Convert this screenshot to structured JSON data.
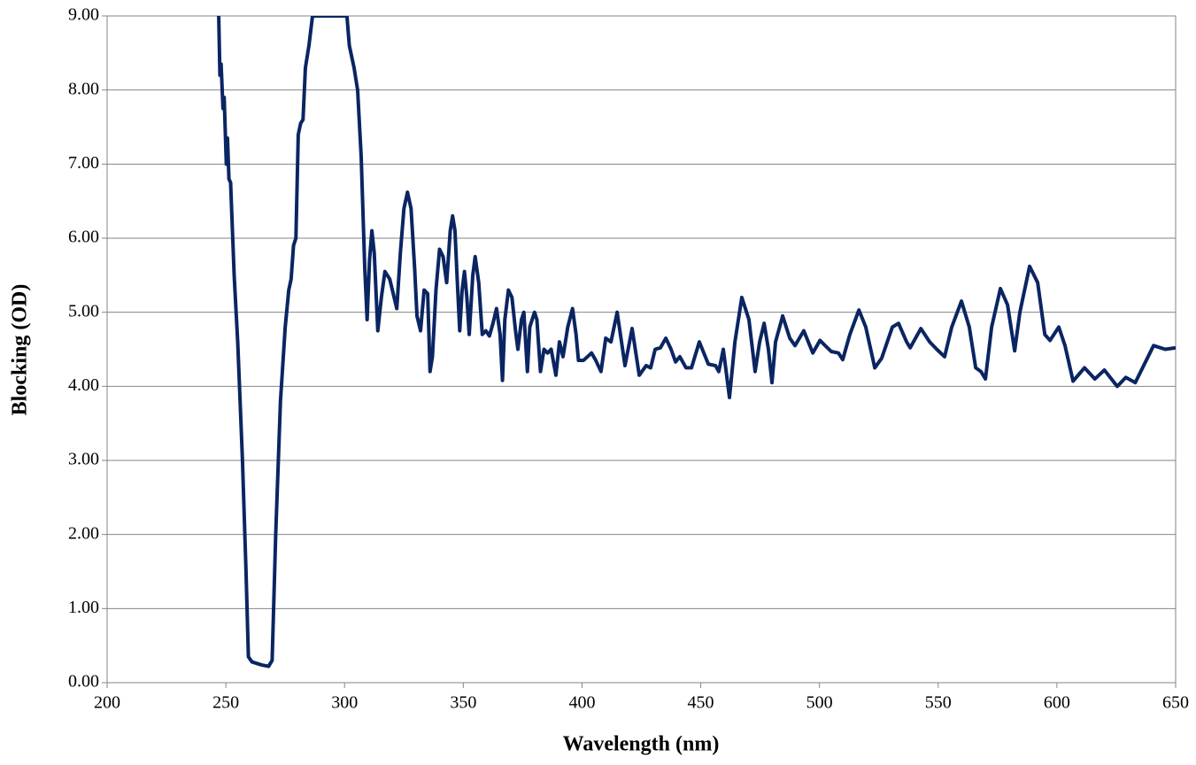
{
  "chart_data": {
    "type": "line",
    "x_label": "Wavelength (nm)",
    "y_label": "Blocking (OD)",
    "color": "#0a2562",
    "grid": true,
    "xlim": [
      200,
      650
    ],
    "xticks": [
      200,
      250,
      300,
      350,
      400,
      450,
      500,
      550,
      600,
      650
    ],
    "ylim": [
      0,
      9
    ],
    "yticks": [
      {
        "value": 0,
        "label": "0.00"
      },
      {
        "value": 1,
        "label": "1.00"
      },
      {
        "value": 2,
        "label": "2.00"
      },
      {
        "value": 3,
        "label": "3.00"
      },
      {
        "value": 4,
        "label": "4.00"
      },
      {
        "value": 5,
        "label": "5.00"
      },
      {
        "value": 6,
        "label": "6.00"
      },
      {
        "value": 7,
        "label": "7.00"
      },
      {
        "value": 8,
        "label": "8.00"
      },
      {
        "value": 9,
        "label": "9.00"
      }
    ],
    "x": [
      247,
      247.5,
      248,
      248.8,
      249.3,
      250.2,
      250.7,
      251.3,
      252,
      253.5,
      255,
      257,
      258.5,
      259.5,
      261,
      265,
      268,
      269.5,
      271,
      273,
      275,
      276.5,
      277.5,
      278.5,
      279.5,
      280.5,
      281.5,
      282.5,
      283.5,
      285,
      286.5,
      288,
      289,
      301,
      302,
      304,
      305.5,
      307,
      308.5,
      309.5,
      310.5,
      311.5,
      312.5,
      314,
      315.5,
      317,
      319,
      320.5,
      322,
      323.5,
      325,
      326.5,
      328,
      329.5,
      330.5,
      332,
      333.5,
      335,
      336,
      337,
      338.5,
      340,
      341.5,
      343,
      344.5,
      345.5,
      346.5,
      347.5,
      348.5,
      349.5,
      350.5,
      351.5,
      352.5,
      354,
      355,
      356.5,
      358,
      359.5,
      361,
      362.5,
      364,
      365.5,
      366.5,
      367.5,
      369,
      370.5,
      372,
      373,
      374.5,
      375.5,
      377,
      378,
      380,
      381,
      382.5,
      384,
      385.5,
      387,
      389,
      390.5,
      392,
      394,
      396,
      397.5,
      398.5,
      400.6,
      404,
      405.8,
      408,
      410,
      412.2,
      414.8,
      418.1,
      421.1,
      424.1,
      427,
      428.9,
      430.8,
      433,
      435.3,
      437.5,
      439.4,
      441.2,
      443.8,
      446.1,
      449.4,
      453.2,
      456.2,
      457.6,
      459.5,
      462.1,
      464.4,
      467.3,
      470.3,
      472.9,
      474.8,
      476.7,
      478.5,
      480,
      481.5,
      484.5,
      487.5,
      489.7,
      493.4,
      497.2,
      500.2,
      502.4,
      505,
      508,
      509.8,
      512.8,
      516.6,
      519.5,
      523.3,
      526.2,
      530.7,
      533.3,
      536.7,
      538.2,
      542.7,
      546.4,
      549.4,
      552.7,
      555.7,
      559.8,
      563.1,
      565.8,
      568,
      569.9,
      572.5,
      576.2,
      579.2,
      582.2,
      584.4,
      588.5,
      591.9,
      594.9,
      597.1,
      600.8,
      603.4,
      606.8,
      611.6,
      616,
      620,
      625.4,
      629,
      633,
      640.7,
      645.6,
      650
    ],
    "values": [
      9.0,
      8.2,
      8.35,
      7.75,
      7.9,
      7.0,
      7.35,
      6.8,
      6.75,
      5.5,
      4.6,
      3.0,
      1.5,
      0.35,
      0.28,
      0.24,
      0.22,
      0.3,
      2.0,
      3.8,
      4.8,
      5.3,
      5.45,
      5.9,
      6.0,
      7.4,
      7.55,
      7.6,
      8.3,
      8.6,
      9.0,
      9.0,
      9.0,
      9.0,
      8.6,
      8.3,
      8.0,
      7.1,
      5.6,
      4.9,
      5.7,
      6.1,
      5.8,
      4.75,
      5.2,
      5.55,
      5.45,
      5.25,
      5.05,
      5.8,
      6.4,
      6.62,
      6.4,
      5.6,
      4.95,
      4.75,
      5.3,
      5.25,
      4.2,
      4.4,
      5.3,
      5.85,
      5.75,
      5.4,
      6.1,
      6.3,
      6.1,
      5.4,
      4.75,
      5.3,
      5.55,
      5.2,
      4.7,
      5.5,
      5.75,
      5.4,
      4.7,
      4.75,
      4.68,
      4.85,
      5.05,
      4.7,
      4.08,
      4.9,
      5.3,
      5.2,
      4.75,
      4.5,
      4.9,
      5.0,
      4.2,
      4.8,
      5.0,
      4.9,
      4.2,
      4.5,
      4.45,
      4.5,
      4.15,
      4.6,
      4.4,
      4.8,
      5.05,
      4.7,
      4.35,
      4.35,
      4.45,
      4.35,
      4.2,
      4.65,
      4.6,
      5.0,
      4.28,
      4.78,
      4.15,
      4.28,
      4.25,
      4.5,
      4.52,
      4.65,
      4.5,
      4.33,
      4.4,
      4.25,
      4.25,
      4.6,
      4.3,
      4.28,
      4.2,
      4.5,
      3.85,
      4.6,
      5.2,
      4.9,
      4.2,
      4.6,
      4.85,
      4.5,
      4.05,
      4.6,
      4.95,
      4.65,
      4.55,
      4.75,
      4.45,
      4.62,
      4.55,
      4.47,
      4.45,
      4.36,
      4.7,
      5.03,
      4.8,
      4.25,
      4.38,
      4.8,
      4.85,
      4.6,
      4.52,
      4.78,
      4.6,
      4.5,
      4.4,
      4.8,
      5.15,
      4.8,
      4.25,
      4.2,
      4.1,
      4.8,
      5.32,
      5.1,
      4.48,
      5.0,
      5.62,
      5.4,
      4.7,
      4.62,
      4.8,
      4.55,
      4.07,
      4.25,
      4.1,
      4.22,
      4.0,
      4.12,
      4.05,
      4.55,
      4.5,
      4.52
    ]
  }
}
